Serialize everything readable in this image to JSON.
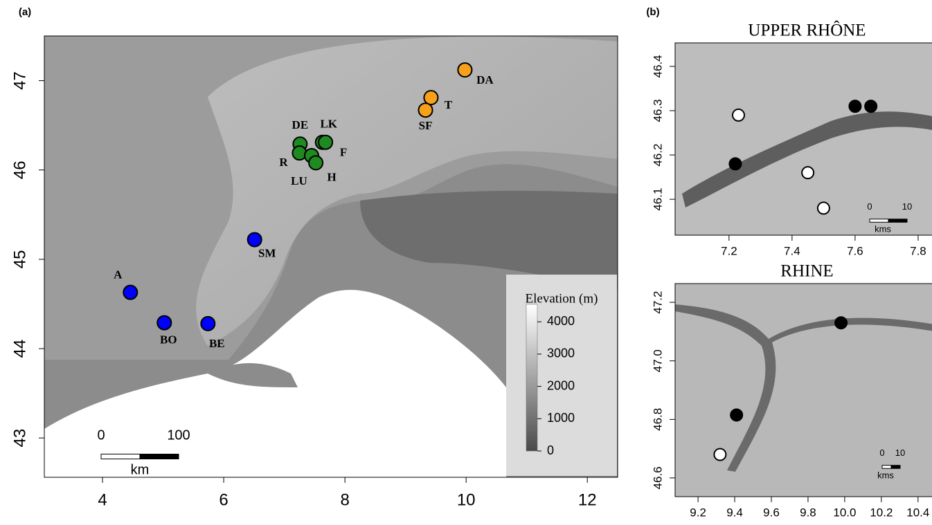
{
  "chart_data": [
    {
      "type": "scatter",
      "panel_label": "(a)",
      "xlim": [
        3.04,
        12.5
      ],
      "ylim": [
        42.56,
        47.5
      ],
      "xticks": [
        4,
        6,
        8,
        10,
        12
      ],
      "yticks": [
        43,
        44,
        45,
        46,
        47
      ],
      "series": [
        {
          "color": "#f7a11a",
          "x": [
            9.98,
            9.42,
            9.33
          ],
          "values": [
            47.12,
            46.81,
            46.67
          ],
          "labels": [
            "DA",
            "T",
            "SF"
          ]
        },
        {
          "color": "#1f8a1f",
          "x": [
            7.26,
            7.25,
            7.45,
            7.52,
            7.63,
            7.68
          ],
          "values": [
            46.29,
            46.19,
            46.16,
            46.08,
            46.31,
            46.31
          ],
          "labels": [
            "DE",
            "R",
            "LU",
            "H",
            "LK",
            "F"
          ]
        },
        {
          "color": "#0000ff",
          "x": [
            6.51,
            4.46,
            5.02,
            5.74
          ],
          "values": [
            45.22,
            44.63,
            44.29,
            44.28
          ],
          "labels": [
            "SM",
            "A",
            "BO",
            "BE"
          ]
        }
      ],
      "colorbar": {
        "title": "Elevation (m)",
        "lim": [
          0,
          4540
        ],
        "ticks": [
          0,
          1000,
          2000,
          3000,
          4000
        ]
      },
      "scalebar": {
        "ticks": [
          0,
          100
        ],
        "unit": "km"
      }
    },
    {
      "type": "scatter",
      "panel_label": "(b)",
      "title": "UPPER RHÔNE",
      "xlim": [
        7.029,
        7.866
      ],
      "ylim": [
        46.019,
        46.453
      ],
      "xticks": [
        7.2,
        7.4,
        7.6,
        7.8
      ],
      "yticks": [
        46.1,
        46.2,
        46.3,
        46.4
      ],
      "series": [
        {
          "color": "#ffffff",
          "x": [
            7.23,
            7.45,
            7.5
          ],
          "values": [
            46.29,
            46.16,
            46.08
          ]
        },
        {
          "color": "#000000",
          "x": [
            7.22,
            7.6,
            7.65
          ],
          "values": [
            46.18,
            46.31,
            46.31
          ]
        }
      ],
      "scalebar": {
        "ticks": [
          0,
          10
        ],
        "unit": "kms"
      }
    },
    {
      "type": "scatter",
      "title": "RHINE",
      "xlim": [
        9.075,
        10.514
      ],
      "ylim": [
        46.536,
        47.264
      ],
      "xticks": [
        9.2,
        9.4,
        9.6,
        9.8,
        {
          "value": 10,
          "label": "10.0"
        },
        10.2,
        10.4
      ],
      "yticks": [
        46.6,
        46.8,
        {
          "value": 47,
          "label": "47.0"
        },
        47.2
      ],
      "series": [
        {
          "color": "#000000",
          "x": [
            9.98,
            9.41
          ],
          "values": [
            47.13,
            46.815
          ]
        },
        {
          "color": "#ffffff",
          "x": [
            9.32
          ],
          "values": [
            46.68
          ]
        }
      ],
      "scalebar": {
        "ticks": [
          0,
          10
        ],
        "unit": "kms"
      }
    }
  ]
}
